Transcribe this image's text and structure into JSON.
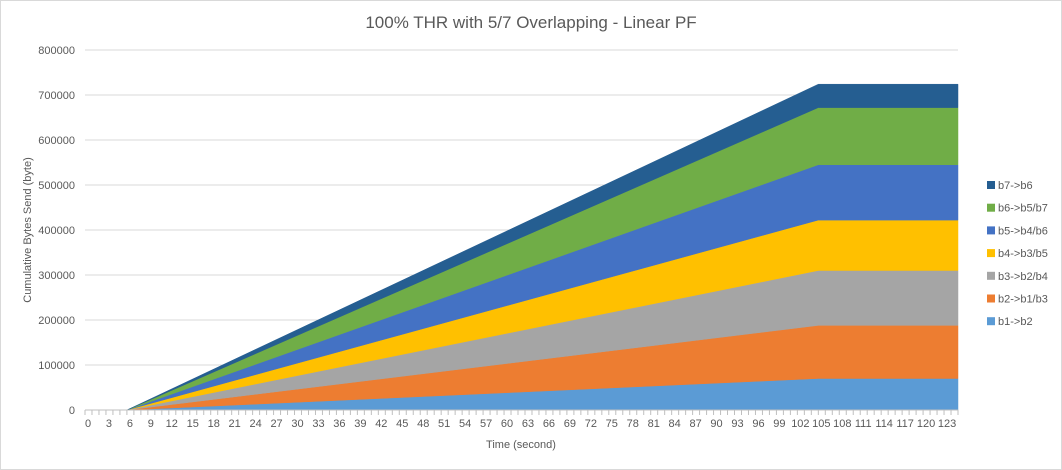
{
  "chart_data": {
    "type": "area",
    "stacked": true,
    "title": "100% THR with 5/7 Overlapping - Linear PF",
    "xlabel": "Time (second)",
    "ylabel": "Cumulative Bytes Send (byte)",
    "ylim": [
      0,
      800000
    ],
    "yticks": [
      0,
      100000,
      200000,
      300000,
      400000,
      500000,
      600000,
      700000,
      800000
    ],
    "xlim": [
      0,
      125
    ],
    "xticks": [
      0,
      3,
      6,
      9,
      12,
      15,
      18,
      21,
      24,
      27,
      30,
      33,
      36,
      39,
      42,
      45,
      48,
      51,
      54,
      57,
      60,
      63,
      66,
      69,
      72,
      75,
      78,
      81,
      84,
      87,
      90,
      93,
      96,
      99,
      102,
      105,
      108,
      111,
      114,
      117,
      120,
      123
    ],
    "grid": true,
    "legend_position": "right",
    "x": [
      0,
      5,
      6,
      105,
      125
    ],
    "series": [
      {
        "name": "b1->b2",
        "color": "#5B9BD5",
        "values": [
          0,
          0,
          0,
          70000,
          70000
        ]
      },
      {
        "name": "b2->b1/b3",
        "color": "#ED7D31",
        "values": [
          0,
          0,
          0,
          118000,
          118000
        ]
      },
      {
        "name": "b3->b2/b4",
        "color": "#A5A5A5",
        "values": [
          0,
          0,
          0,
          122000,
          122000
        ]
      },
      {
        "name": "b4->b3/b5",
        "color": "#FFC000",
        "values": [
          0,
          0,
          0,
          112000,
          112000
        ]
      },
      {
        "name": "b5->b4/b6",
        "color": "#4472C4",
        "values": [
          0,
          0,
          0,
          123000,
          123000
        ]
      },
      {
        "name": "b6->b5/b7",
        "color": "#70AD47",
        "values": [
          0,
          0,
          0,
          127000,
          127000
        ]
      },
      {
        "name": "b7->b6",
        "color": "#255E91",
        "values": [
          0,
          0,
          0,
          52000,
          52000
        ]
      }
    ]
  }
}
